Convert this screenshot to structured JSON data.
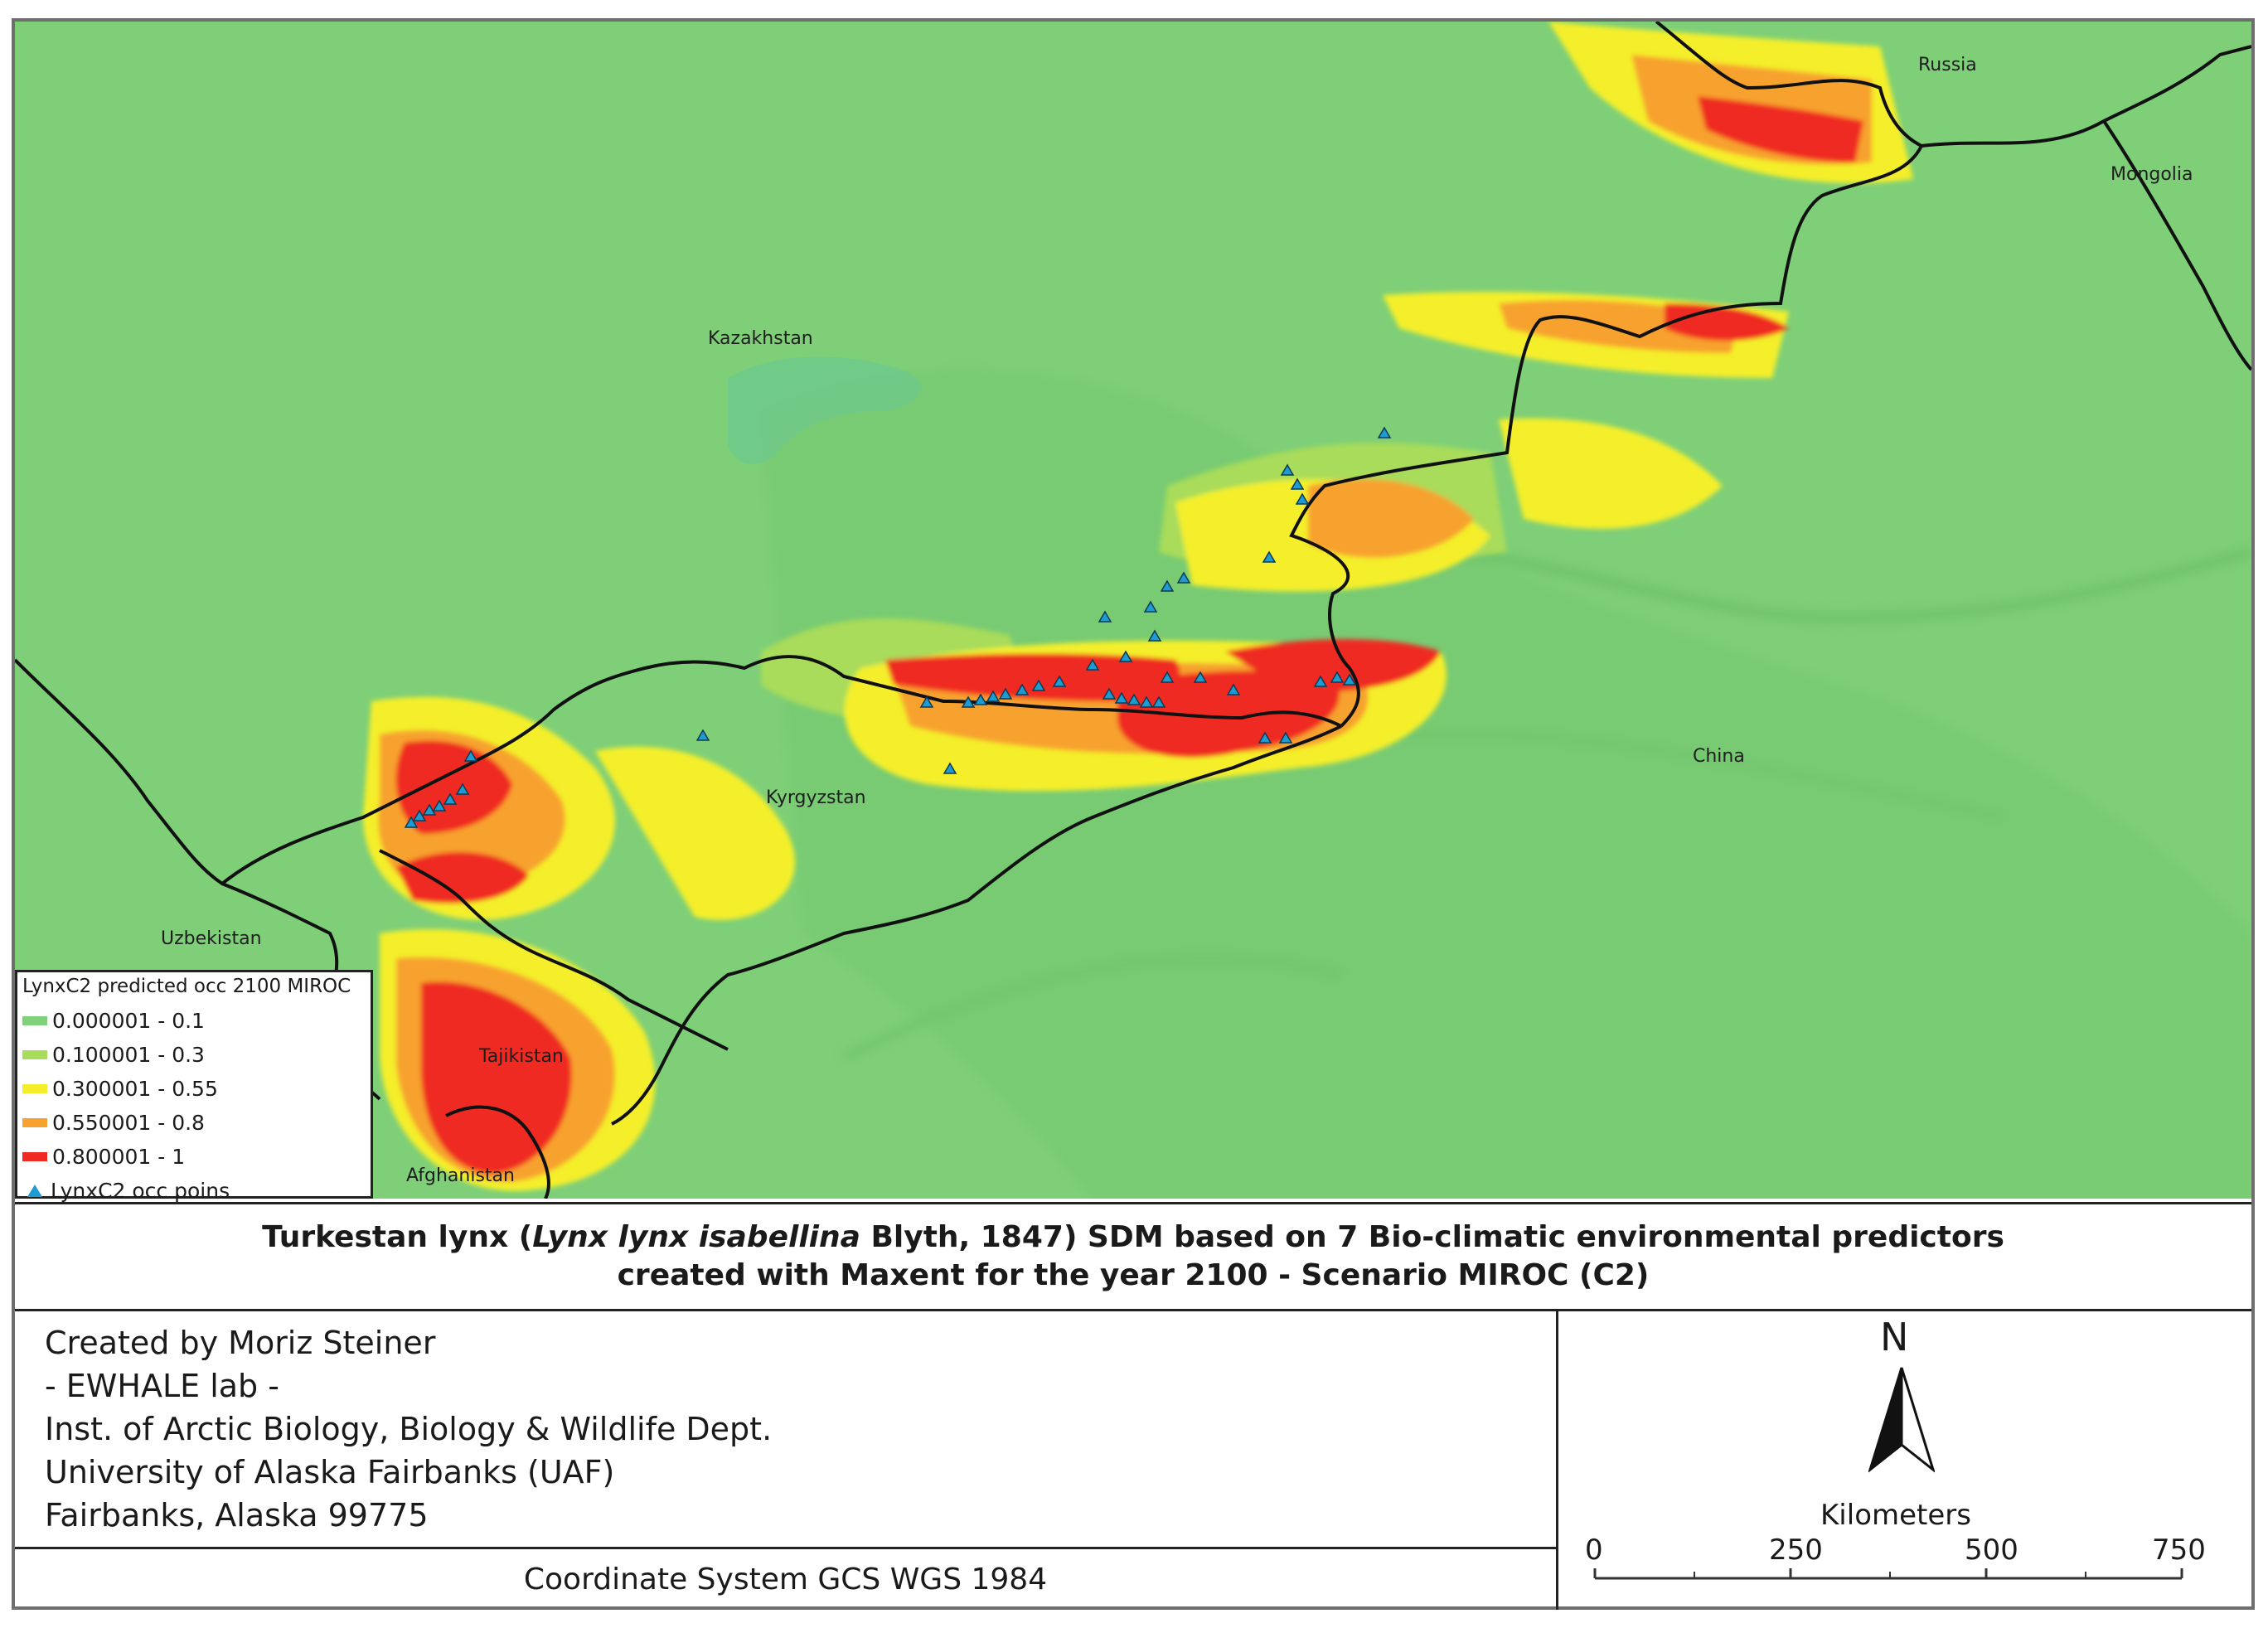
{
  "map": {
    "labels": {
      "russia": "Russia",
      "mongolia": "Mongolia",
      "kazakhstan": "Kazakhstan",
      "china": "China",
      "kyrgyzstan": "Kyrgyzstan",
      "uzbekistan": "Uzbekistan",
      "tajikistan": "Tajikistan",
      "afghanistan": "Afghanistan"
    },
    "colors": {
      "base": "#7ecf78",
      "c1": "#7fd17a",
      "c2": "#a8dc5a",
      "c3": "#f4ef2a",
      "c4": "#f7a22f",
      "c5": "#ef2a23",
      "points": "#1e9bd0",
      "borders": "#111111"
    }
  },
  "legend": {
    "title": "LynxC2 predicted occ 2100 MIROC",
    "classes": [
      {
        "label": "0.000001 - 0.1",
        "color": "#7fd17a"
      },
      {
        "label": "0.100001 - 0.3",
        "color": "#a8dc5a"
      },
      {
        "label": "0.300001 - 0.55",
        "color": "#f4ef2a"
      },
      {
        "label": "0.550001 - 0.8",
        "color": "#f7a22f"
      },
      {
        "label": "0.800001 - 1",
        "color": "#ef2a23"
      }
    ],
    "points_label": "LynxC2 occ poins"
  },
  "title": {
    "line1_pre": "Turkestan lynx (",
    "line1_italic": "Lynx lynx isabellina",
    "line1_post": " Blyth, 1847) SDM based on 7 Bio-climatic environmental predictors",
    "line2": "created with Maxent for the year 2100 - Scenario MIROC (C2)"
  },
  "credits": [
    "Created by Moriz Steiner",
    "- EWHALE lab -",
    "Inst. of Arctic Biology,  Biology & Wildlife Dept.",
    "University of Alaska Fairbanks (UAF)",
    "Fairbanks, Alaska 99775"
  ],
  "coordinate_system": "Coordinate System GCS WGS 1984",
  "north": "N",
  "scale": {
    "title": "Kilometers",
    "ticks": [
      "0",
      "250",
      "500",
      "750"
    ]
  }
}
